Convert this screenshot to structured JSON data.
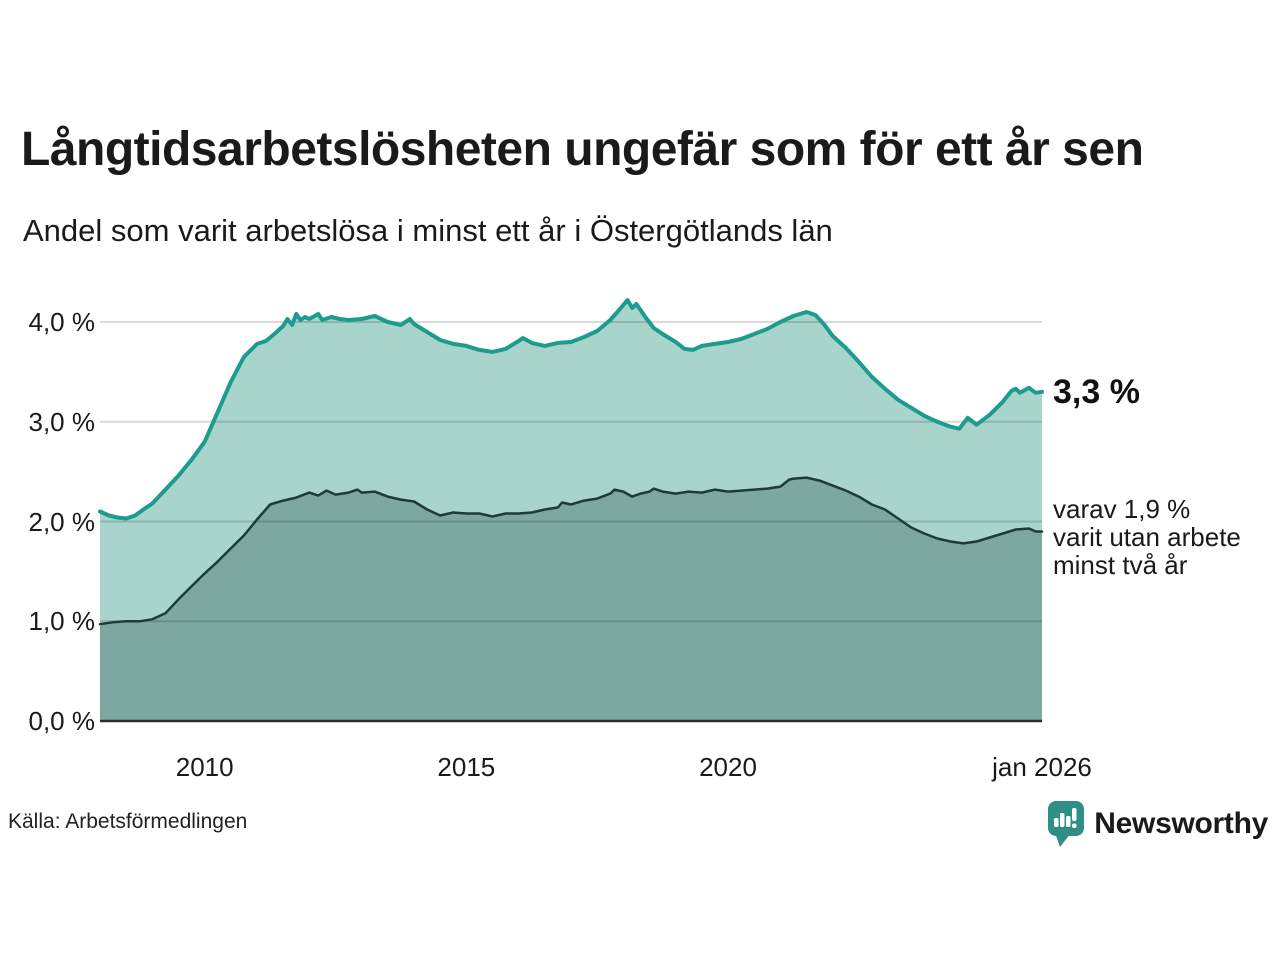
{
  "header": {
    "title": "Långtidsarbetslösheten ungefär som för ett år sen",
    "subtitle": "Andel som varit arbetslösa i minst ett år i Östergötlands län"
  },
  "footer": {
    "source": "Källa: Arbetsförmedlingen",
    "brand": "Newsworthy"
  },
  "colors": {
    "text": "#1a1a1a",
    "brand_teal": "#2f8f87",
    "gridline": "rgba(0,0,0,0.15)",
    "axis_line": "#2e2e2e"
  },
  "chart_data": {
    "type": "area",
    "title": "Långtidsarbetslösheten ungefär som för ett år sen",
    "subtitle": "Andel som varit arbetslösa i minst ett år i Östergötlands län",
    "source": "Källa: Arbetsförmedlingen",
    "unit": "%",
    "grid": "horizontal",
    "x_range": [
      2008,
      2026
    ],
    "ylim": [
      0,
      4.35
    ],
    "yticks": [
      {
        "value": 0,
        "label": "0,0 %"
      },
      {
        "value": 1,
        "label": "1,0 %"
      },
      {
        "value": 2,
        "label": "2,0 %"
      },
      {
        "value": 3,
        "label": "3,0 %"
      },
      {
        "value": 4,
        "label": "4,0 %"
      }
    ],
    "xticks": [
      {
        "t": 2010,
        "label": "2010"
      },
      {
        "t": 2015,
        "label": "2015"
      },
      {
        "t": 2020,
        "label": "2020"
      },
      {
        "t": 2026,
        "label": "jan 2026"
      }
    ],
    "annotations": {
      "latest_total": "3,3 %",
      "latest_two_years": [
        "varav 1,9 %",
        "varit utan arbete",
        "minst två år"
      ]
    },
    "series": [
      {
        "name": "Andel som varit arbetslösa i minst ett år",
        "slug": "minst-ett-ar",
        "color": "#1b9c8e",
        "fill": "#a9d4cc",
        "stroke_width": 4,
        "latest_value": 3.3,
        "points": [
          [
            2008.0,
            2.1
          ],
          [
            2008.17,
            2.06
          ],
          [
            2008.33,
            2.04
          ],
          [
            2008.5,
            2.03
          ],
          [
            2008.67,
            2.06
          ],
          [
            2008.83,
            2.12
          ],
          [
            2009.0,
            2.18
          ],
          [
            2009.25,
            2.32
          ],
          [
            2009.5,
            2.46
          ],
          [
            2009.75,
            2.62
          ],
          [
            2010.0,
            2.8
          ],
          [
            2010.25,
            3.1
          ],
          [
            2010.5,
            3.4
          ],
          [
            2010.75,
            3.65
          ],
          [
            2011.0,
            3.78
          ],
          [
            2011.17,
            3.81
          ],
          [
            2011.33,
            3.88
          ],
          [
            2011.5,
            3.96
          ],
          [
            2011.58,
            4.03
          ],
          [
            2011.67,
            3.97
          ],
          [
            2011.75,
            4.08
          ],
          [
            2011.83,
            4.02
          ],
          [
            2011.92,
            4.05
          ],
          [
            2012.0,
            4.03
          ],
          [
            2012.17,
            4.08
          ],
          [
            2012.25,
            4.02
          ],
          [
            2012.42,
            4.05
          ],
          [
            2012.58,
            4.03
          ],
          [
            2012.75,
            4.02
          ],
          [
            2013.0,
            4.03
          ],
          [
            2013.25,
            4.06
          ],
          [
            2013.5,
            4.0
          ],
          [
            2013.75,
            3.97
          ],
          [
            2013.92,
            4.03
          ],
          [
            2014.0,
            3.98
          ],
          [
            2014.25,
            3.9
          ],
          [
            2014.5,
            3.82
          ],
          [
            2014.75,
            3.78
          ],
          [
            2015.0,
            3.76
          ],
          [
            2015.25,
            3.72
          ],
          [
            2015.5,
            3.7
          ],
          [
            2015.75,
            3.73
          ],
          [
            2016.0,
            3.81
          ],
          [
            2016.08,
            3.84
          ],
          [
            2016.25,
            3.79
          ],
          [
            2016.5,
            3.76
          ],
          [
            2016.75,
            3.79
          ],
          [
            2017.0,
            3.8
          ],
          [
            2017.25,
            3.85
          ],
          [
            2017.5,
            3.91
          ],
          [
            2017.75,
            4.02
          ],
          [
            2017.92,
            4.12
          ],
          [
            2018.08,
            4.22
          ],
          [
            2018.17,
            4.14
          ],
          [
            2018.25,
            4.18
          ],
          [
            2018.42,
            4.05
          ],
          [
            2018.58,
            3.94
          ],
          [
            2018.75,
            3.88
          ],
          [
            2019.0,
            3.8
          ],
          [
            2019.17,
            3.73
          ],
          [
            2019.33,
            3.72
          ],
          [
            2019.5,
            3.76
          ],
          [
            2019.75,
            3.78
          ],
          [
            2020.0,
            3.8
          ],
          [
            2020.25,
            3.83
          ],
          [
            2020.5,
            3.88
          ],
          [
            2020.75,
            3.93
          ],
          [
            2021.0,
            4.0
          ],
          [
            2021.25,
            4.06
          ],
          [
            2021.5,
            4.1
          ],
          [
            2021.67,
            4.07
          ],
          [
            2021.83,
            3.98
          ],
          [
            2022.0,
            3.86
          ],
          [
            2022.25,
            3.74
          ],
          [
            2022.5,
            3.6
          ],
          [
            2022.75,
            3.45
          ],
          [
            2023.0,
            3.33
          ],
          [
            2023.25,
            3.22
          ],
          [
            2023.5,
            3.14
          ],
          [
            2023.75,
            3.06
          ],
          [
            2024.0,
            3.0
          ],
          [
            2024.25,
            2.95
          ],
          [
            2024.42,
            2.93
          ],
          [
            2024.58,
            3.04
          ],
          [
            2024.75,
            2.97
          ],
          [
            2025.0,
            3.07
          ],
          [
            2025.25,
            3.2
          ],
          [
            2025.42,
            3.31
          ],
          [
            2025.5,
            3.33
          ],
          [
            2025.58,
            3.29
          ],
          [
            2025.75,
            3.34
          ],
          [
            2025.88,
            3.29
          ],
          [
            2026.0,
            3.3
          ]
        ]
      },
      {
        "name": "varav utan arbete minst två år",
        "slug": "minst-tva-ar",
        "color": "#1e3c35",
        "fill": "#7ca89f",
        "stroke_width": 2.5,
        "latest_value": 1.9,
        "points": [
          [
            2008.0,
            0.97
          ],
          [
            2008.25,
            0.99
          ],
          [
            2008.5,
            1.0
          ],
          [
            2008.75,
            1.0
          ],
          [
            2009.0,
            1.02
          ],
          [
            2009.25,
            1.08
          ],
          [
            2009.5,
            1.22
          ],
          [
            2009.75,
            1.35
          ],
          [
            2010.0,
            1.48
          ],
          [
            2010.25,
            1.6
          ],
          [
            2010.5,
            1.73
          ],
          [
            2010.75,
            1.86
          ],
          [
            2011.0,
            2.02
          ],
          [
            2011.25,
            2.17
          ],
          [
            2011.5,
            2.21
          ],
          [
            2011.75,
            2.24
          ],
          [
            2012.0,
            2.29
          ],
          [
            2012.17,
            2.26
          ],
          [
            2012.33,
            2.31
          ],
          [
            2012.5,
            2.27
          ],
          [
            2012.75,
            2.29
          ],
          [
            2012.92,
            2.32
          ],
          [
            2013.0,
            2.29
          ],
          [
            2013.25,
            2.3
          ],
          [
            2013.5,
            2.25
          ],
          [
            2013.75,
            2.22
          ],
          [
            2014.0,
            2.2
          ],
          [
            2014.25,
            2.12
          ],
          [
            2014.5,
            2.06
          ],
          [
            2014.75,
            2.09
          ],
          [
            2015.0,
            2.08
          ],
          [
            2015.25,
            2.08
          ],
          [
            2015.5,
            2.05
          ],
          [
            2015.75,
            2.08
          ],
          [
            2016.0,
            2.08
          ],
          [
            2016.25,
            2.09
          ],
          [
            2016.5,
            2.12
          ],
          [
            2016.75,
            2.14
          ],
          [
            2016.83,
            2.19
          ],
          [
            2017.0,
            2.17
          ],
          [
            2017.25,
            2.21
          ],
          [
            2017.5,
            2.23
          ],
          [
            2017.75,
            2.28
          ],
          [
            2017.83,
            2.32
          ],
          [
            2018.0,
            2.3
          ],
          [
            2018.17,
            2.25
          ],
          [
            2018.33,
            2.28
          ],
          [
            2018.5,
            2.3
          ],
          [
            2018.58,
            2.33
          ],
          [
            2018.75,
            2.3
          ],
          [
            2019.0,
            2.28
          ],
          [
            2019.25,
            2.3
          ],
          [
            2019.5,
            2.29
          ],
          [
            2019.75,
            2.32
          ],
          [
            2020.0,
            2.3
          ],
          [
            2020.25,
            2.31
          ],
          [
            2020.5,
            2.32
          ],
          [
            2020.75,
            2.33
          ],
          [
            2021.0,
            2.35
          ],
          [
            2021.17,
            2.42
          ],
          [
            2021.25,
            2.43
          ],
          [
            2021.5,
            2.44
          ],
          [
            2021.75,
            2.41
          ],
          [
            2022.0,
            2.36
          ],
          [
            2022.25,
            2.31
          ],
          [
            2022.5,
            2.25
          ],
          [
            2022.75,
            2.17
          ],
          [
            2023.0,
            2.12
          ],
          [
            2023.25,
            2.03
          ],
          [
            2023.5,
            1.94
          ],
          [
            2023.75,
            1.88
          ],
          [
            2024.0,
            1.83
          ],
          [
            2024.25,
            1.8
          ],
          [
            2024.5,
            1.78
          ],
          [
            2024.75,
            1.8
          ],
          [
            2025.0,
            1.84
          ],
          [
            2025.25,
            1.88
          ],
          [
            2025.5,
            1.92
          ],
          [
            2025.75,
            1.93
          ],
          [
            2025.88,
            1.9
          ],
          [
            2026.0,
            1.9
          ]
        ]
      }
    ]
  }
}
